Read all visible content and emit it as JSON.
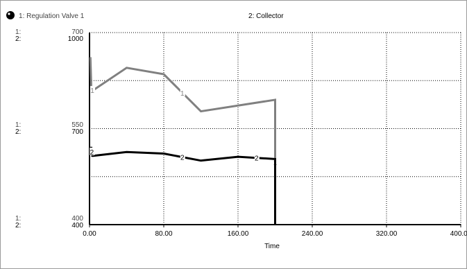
{
  "chart_data": {
    "type": "line",
    "title": "",
    "xlabel": "Time",
    "x_ticks": [
      "0.00",
      "80.00",
      "160.00",
      "240.00",
      "320.00",
      "400.00"
    ],
    "xlim": [
      0,
      400
    ],
    "grid": true,
    "legend_placement": "top",
    "series": [
      {
        "number": "1",
        "name": "Regulation  Valve 1",
        "color": "#808080",
        "axis_labels": [
          "1:",
          "1:",
          "1:"
        ],
        "yticks": [
          "700",
          "550",
          "400"
        ],
        "ylim": [
          400,
          700
        ],
        "x": [
          0,
          1,
          2,
          4,
          40,
          80,
          120,
          200,
          200
        ],
        "values": [
          660,
          660,
          610,
          610,
          645,
          635,
          577,
          595,
          400
        ]
      },
      {
        "number": "2",
        "name": "Collector",
        "color": "#000000",
        "axis_labels": [
          "2:",
          "2:",
          "2:"
        ],
        "yticks": [
          "1000",
          "700",
          "400"
        ],
        "ylim": [
          400,
          1000
        ],
        "x": [
          0,
          2,
          3,
          4,
          40,
          80,
          120,
          160,
          200,
          200
        ],
        "values": [
          640,
          640,
          615,
          615,
          627,
          622,
          600,
          612,
          605,
          400
        ]
      }
    ]
  }
}
